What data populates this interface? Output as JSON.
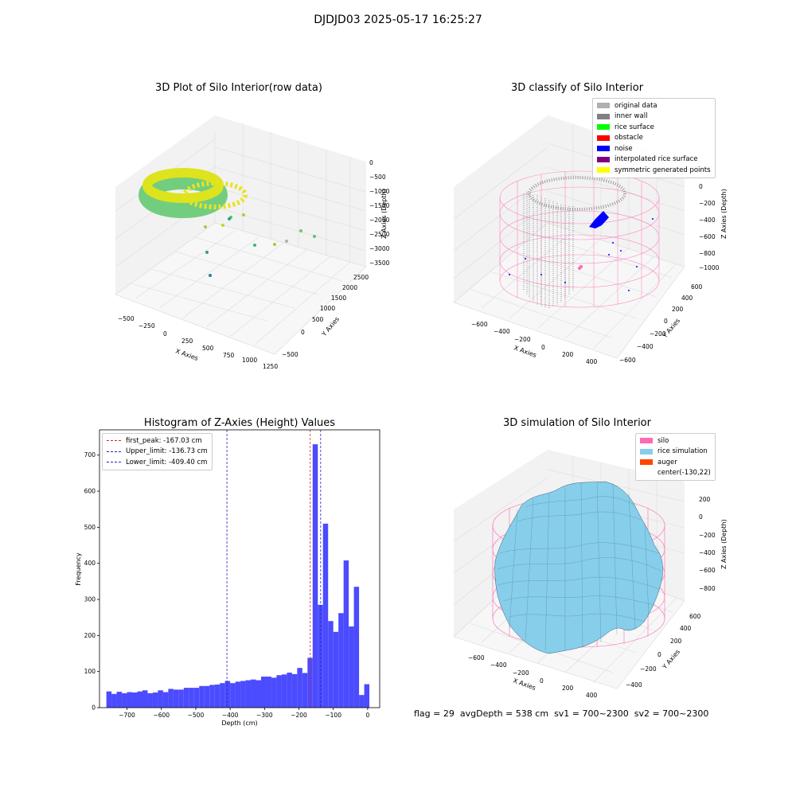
{
  "figure": {
    "suptitle": "DJDJD03 2025-05-17 16:25:27",
    "footer": {
      "flag": "flag = 29",
      "avg_depth": "avgDepth = 538 cm",
      "sv1": "sv1 = 700~2300",
      "sv2": "sv2 = 700~2300"
    }
  },
  "colors": {
    "histogram_bar": "#4b4bff",
    "peak_line": "#e02020",
    "limit_line": "#2020d0",
    "original_data": "#b0b0b0",
    "inner_wall": "#808080",
    "rice_surface": "#00ff00",
    "obstacle": "#ff0000",
    "noise": "#0000ff",
    "interpolated_rice_surface": "#800080",
    "symmetric_generated_points": "#ffff00",
    "silo": "#ff69b4",
    "rice_simulation": "#87ceeb",
    "auger": "#ff4500"
  },
  "chart_data": [
    {
      "type": "scatter",
      "projection": "3d",
      "title": "3D Plot of Silo Interior(row data)",
      "xlabel": "X Axies",
      "ylabel": "Y Axies",
      "zlabel": "Z Axies (Depth)",
      "xticks": [
        "−500",
        "−250",
        "0",
        "250",
        "500",
        "750",
        "1000",
        "1250"
      ],
      "yticks": [
        "−500",
        "0",
        "500",
        "1000",
        "1500",
        "2000",
        "2500"
      ],
      "zticks": [
        "0",
        "−500",
        "−1000",
        "−1500",
        "−2000",
        "−2500",
        "−3000",
        "−3500"
      ],
      "colormap": "viridis",
      "grid": true
    },
    {
      "type": "scatter",
      "projection": "3d",
      "title": "3D classify of Silo Interior",
      "xlabel": "X Axies",
      "ylabel": "Y Axies",
      "zlabel": "Z Axies (Depth)",
      "xticks": [
        "−600",
        "−400",
        "−200",
        "0",
        "200",
        "400"
      ],
      "yticks": [
        "−600",
        "−400",
        "−200",
        "0",
        "200",
        "400",
        "600"
      ],
      "zticks": [
        "200",
        "0",
        "−200",
        "−400",
        "−600",
        "−800",
        "−1000"
      ],
      "legend_position": "top-right",
      "legend": [
        {
          "label": "original data",
          "color": "#b0b0b0"
        },
        {
          "label": "inner wall",
          "color": "#808080"
        },
        {
          "label": "rice surface",
          "color": "#00ff00"
        },
        {
          "label": "obstacle",
          "color": "#ff0000"
        },
        {
          "label": "noise",
          "color": "#0000ff"
        },
        {
          "label": "interpolated rice surface",
          "color": "#800080"
        },
        {
          "label": "symmetric generated points",
          "color": "#ffff00"
        }
      ],
      "grid": true
    },
    {
      "type": "bar",
      "title": "Histogram of Z-Axies (Height) Values",
      "xlabel": "Depth (cm)",
      "ylabel": "Frequency",
      "xlim": [
        -780,
        35
      ],
      "ylim": [
        0,
        770
      ],
      "xticks": [
        -700,
        -600,
        -500,
        -400,
        -300,
        -200,
        -100,
        0
      ],
      "yticks": [
        0,
        100,
        200,
        300,
        400,
        500,
        600,
        700
      ],
      "bin_start": -760,
      "bin_width": 15,
      "values": [
        45,
        38,
        44,
        40,
        43,
        42,
        45,
        48,
        40,
        42,
        48,
        43,
        52,
        50,
        50,
        55,
        55,
        55,
        60,
        60,
        63,
        64,
        68,
        74,
        68,
        72,
        74,
        76,
        78,
        76,
        86,
        86,
        83,
        90,
        92,
        97,
        93,
        110,
        96,
        138,
        730,
        285,
        510,
        240,
        210,
        262,
        408,
        225,
        335,
        35,
        65
      ],
      "vlines": [
        {
          "x": -167.03,
          "label": "first_peak: -167.03 cm",
          "style": "peak"
        },
        {
          "x": -136.73,
          "label": "Upper_limit: -136.73 cm",
          "style": "limit"
        },
        {
          "x": -409.4,
          "label": "Lower_limit: -409.40 cm",
          "style": "limit"
        }
      ],
      "legend_position": "top-left"
    },
    {
      "type": "surface",
      "projection": "3d",
      "title": "3D simulation of Silo Interior",
      "xlabel": "X Axies",
      "ylabel": "Y Axies",
      "zlabel": "Z Axies (Depth)",
      "xticks": [
        "−600",
        "−400",
        "−200",
        "0",
        "200",
        "400"
      ],
      "yticks": [
        "−400",
        "−200",
        "0",
        "200",
        "400",
        "600"
      ],
      "zticks": [
        "200",
        "0",
        "−200",
        "−400",
        "−600",
        "−800"
      ],
      "legend_position": "top-right",
      "legend": [
        {
          "label": "silo",
          "color": "#ff69b4"
        },
        {
          "label": "rice simulation",
          "color": "#87ceeb"
        },
        {
          "label": "auger",
          "color": "#ff4500"
        },
        {
          "label": "center(-130,22)",
          "color": ""
        }
      ],
      "grid": true
    }
  ]
}
